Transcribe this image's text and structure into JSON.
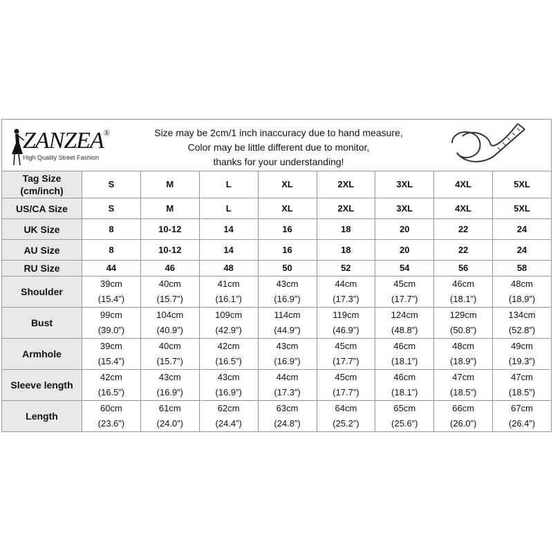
{
  "header": {
    "brand": "ZANZEA",
    "registered": "®",
    "tagline": "High Quality Street Fashion",
    "notice": [
      "Size may be 2cm/1 inch inaccuracy due to hand measure,",
      "Color may be little different due to monitor,",
      "thanks for your understanding!"
    ]
  },
  "table": {
    "rows": [
      {
        "label": [
          "Tag Size",
          "(cm/inch)"
        ],
        "cells": [
          [
            "S"
          ],
          [
            "M"
          ],
          [
            "L"
          ],
          [
            "XL"
          ],
          [
            "2XL"
          ],
          [
            "3XL"
          ],
          [
            "4XL"
          ],
          [
            "5XL"
          ]
        ]
      },
      {
        "label": [
          "US/CA Size"
        ],
        "cells": [
          [
            "S"
          ],
          [
            "M"
          ],
          [
            "L"
          ],
          [
            "XL"
          ],
          [
            "2XL"
          ],
          [
            "3XL"
          ],
          [
            "4XL"
          ],
          [
            "5XL"
          ]
        ]
      },
      {
        "label": [
          "UK Size"
        ],
        "cells": [
          [
            "8"
          ],
          [
            "10-12"
          ],
          [
            "14"
          ],
          [
            "16"
          ],
          [
            "18"
          ],
          [
            "20"
          ],
          [
            "22"
          ],
          [
            "24"
          ]
        ]
      },
      {
        "label": [
          "AU Size"
        ],
        "cells": [
          [
            "8"
          ],
          [
            "10-12"
          ],
          [
            "14"
          ],
          [
            "16"
          ],
          [
            "18"
          ],
          [
            "20"
          ],
          [
            "22"
          ],
          [
            "24"
          ]
        ]
      },
      {
        "label": [
          "RU Size"
        ],
        "cells": [
          [
            "44"
          ],
          [
            "46"
          ],
          [
            "48"
          ],
          [
            "50"
          ],
          [
            "52"
          ],
          [
            "54"
          ],
          [
            "56"
          ],
          [
            "58"
          ]
        ]
      },
      {
        "label": [
          "Shoulder"
        ],
        "cells": [
          [
            "39cm",
            "(15.4”)"
          ],
          [
            "40cm",
            "(15.7”)"
          ],
          [
            "41cm",
            "(16.1”)"
          ],
          [
            "43cm",
            "(16.9”)"
          ],
          [
            "44cm",
            "(17.3”)"
          ],
          [
            "45cm",
            "(17.7”)"
          ],
          [
            "46cm",
            "(18.1”)"
          ],
          [
            "48cm",
            "(18.9”)"
          ]
        ]
      },
      {
        "label": [
          "Bust"
        ],
        "cells": [
          [
            "99cm",
            "(39.0”)"
          ],
          [
            "104cm",
            "(40.9”)"
          ],
          [
            "109cm",
            "(42.9”)"
          ],
          [
            "114cm",
            "(44.9”)"
          ],
          [
            "119cm",
            "(46.9”)"
          ],
          [
            "124cm",
            "(48.8”)"
          ],
          [
            "129cm",
            "(50.8”)"
          ],
          [
            "134cm",
            "(52.8”)"
          ]
        ]
      },
      {
        "label": [
          "Armhole"
        ],
        "cells": [
          [
            "39cm",
            "(15.4”)"
          ],
          [
            "40cm",
            "(15.7”)"
          ],
          [
            "42cm",
            "(16.5”)"
          ],
          [
            "43cm",
            "(16.9”)"
          ],
          [
            "45cm",
            "(17.7”)"
          ],
          [
            "46cm",
            "(18.1”)"
          ],
          [
            "48cm",
            "(18.9”)"
          ],
          [
            "49cm",
            "(19.3”)"
          ]
        ]
      },
      {
        "label": [
          "Sleeve length"
        ],
        "cells": [
          [
            "42cm",
            "(16.5”)"
          ],
          [
            "43cm",
            "(16.9”)"
          ],
          [
            "43cm",
            "(16.9”)"
          ],
          [
            "44cm",
            "(17.3”)"
          ],
          [
            "45cm",
            "(17.7”)"
          ],
          [
            "46cm",
            "(18.1”)"
          ],
          [
            "47cm",
            "(18.5”)"
          ],
          [
            "47cm",
            "(18.5”)"
          ]
        ]
      },
      {
        "label": [
          "Length"
        ],
        "cells": [
          [
            "60cm",
            "(23.6”)"
          ],
          [
            "61cm",
            "(24.0”)"
          ],
          [
            "62cm",
            "(24.4”)"
          ],
          [
            "63cm",
            "(24.8”)"
          ],
          [
            "64cm",
            "(25.2”)"
          ],
          [
            "65cm",
            "(25.6”)"
          ],
          [
            "66cm",
            "(26.0”)"
          ],
          [
            "67cm",
            "(26.4”)"
          ]
        ]
      }
    ]
  }
}
